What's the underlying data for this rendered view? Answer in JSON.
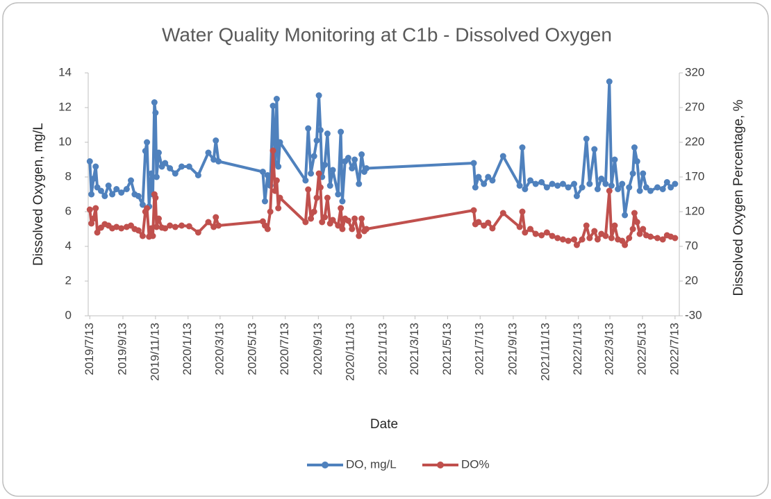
{
  "chart_data": {
    "type": "line",
    "title": "Water Quality Monitoring at C1b - Dissolved Oxygen",
    "x_label": "Date",
    "y_label": "Dissolved Oxygen, mg/L",
    "y2_label": "Dissolved Oxygen Percentage, %",
    "x": [
      "2019/7/13",
      "2019/7/16",
      "2019/7/20",
      "2019/7/24",
      "2019/7/27",
      "2019/8/3",
      "2019/8/10",
      "2019/8/17",
      "2019/8/24",
      "2019/9/1",
      "2019/9/10",
      "2019/9/20",
      "2019/9/28",
      "2019/10/5",
      "2019/10/12",
      "2019/10/20",
      "2019/10/25",
      "2019/10/28",
      "2019/11/1",
      "2019/11/5",
      "2019/11/8",
      "2019/11/11",
      "2019/11/13",
      "2019/11/15",
      "2019/11/19",
      "2019/11/25",
      "2019/12/1",
      "2019/12/10",
      "2019/12/20",
      "2020/1/1",
      "2020/1/15",
      "2020/2/1",
      "2020/2/20",
      "2020/3/1",
      "2020/3/5",
      "2020/3/10",
      "2020/6/1",
      "2020/6/5",
      "2020/6/10",
      "2020/6/15",
      "2020/6/20",
      "2020/6/24",
      "2020/6/27",
      "2020/6/30",
      "2020/7/3",
      "2020/8/20",
      "2020/8/25",
      "2020/8/30",
      "2020/9/5",
      "2020/9/10",
      "2020/9/14",
      "2020/9/17",
      "2020/9/20",
      "2020/9/25",
      "2020/9/30",
      "2020/10/5",
      "2020/10/10",
      "2020/10/20",
      "2020/10/25",
      "2020/10/28",
      "2020/11/2",
      "2020/11/8",
      "2020/11/15",
      "2020/11/20",
      "2020/11/28",
      "2020/12/3",
      "2020/12/8",
      "2020/12/12",
      "2021/7/1",
      "2021/7/4",
      "2021/7/10",
      "2021/7/20",
      "2021/7/28",
      "2021/8/5",
      "2021/8/25",
      "2021/9/25",
      "2021/9/30",
      "2021/10/5",
      "2021/10/15",
      "2021/10/25",
      "2021/11/5",
      "2021/11/15",
      "2021/11/25",
      "2021/12/5",
      "2021/12/15",
      "2021/12/25",
      "2022/1/5",
      "2022/1/10",
      "2022/1/20",
      "2022/1/28",
      "2022/2/3",
      "2022/2/12",
      "2022/2/18",
      "2022/2/25",
      "2022/3/5",
      "2022/3/12",
      "2022/3/16",
      "2022/3/22",
      "2022/3/28",
      "2022/4/5",
      "2022/4/10",
      "2022/4/18",
      "2022/4/25",
      "2022/4/28",
      "2022/5/3",
      "2022/5/8",
      "2022/5/14",
      "2022/5/20",
      "2022/5/28",
      "2022/6/10",
      "2022/6/20",
      "2022/6/28",
      "2022/7/5",
      "2022/7/13"
    ],
    "series": [
      {
        "name": "DO, mg/L",
        "color": "#4f81bd",
        "values": [
          8.9,
          7.0,
          7.9,
          8.6,
          7.4,
          7.2,
          6.9,
          7.5,
          7.0,
          7.3,
          7.1,
          7.3,
          7.8,
          7.0,
          6.9,
          6.4,
          9.5,
          10.0,
          6.3,
          8.2,
          7.0,
          12.3,
          11.7,
          8.0,
          9.4,
          8.6,
          8.8,
          8.5,
          8.2,
          8.6,
          8.6,
          8.1,
          9.4,
          9.0,
          10.1,
          8.9,
          8.3,
          6.6,
          8.1,
          7.5,
          12.1,
          8.8,
          12.5,
          8.6,
          10.0,
          7.8,
          10.8,
          8.2,
          9.2,
          10.1,
          12.7,
          10.7,
          8.0,
          8.7,
          10.5,
          7.5,
          8.4,
          7.0,
          10.6,
          6.6,
          8.9,
          9.1,
          8.5,
          9.0,
          7.6,
          9.3,
          8.3,
          8.5,
          8.8,
          7.4,
          8.0,
          7.6,
          8.0,
          7.8,
          9.2,
          7.5,
          9.7,
          7.3,
          7.8,
          7.6,
          7.7,
          7.4,
          7.6,
          7.5,
          7.6,
          7.4,
          7.6,
          6.9,
          7.4,
          10.2,
          7.6,
          9.6,
          7.3,
          7.9,
          7.6,
          13.5,
          7.5,
          9.0,
          7.3,
          7.6,
          5.8,
          7.4,
          8.2,
          9.7,
          8.9,
          7.2,
          8.2,
          7.4,
          7.2,
          7.4,
          7.3,
          7.7,
          7.4,
          7.6
        ]
      },
      {
        "name": "DO%",
        "color": "#c0504d",
        "axis": "y2",
        "values": [
          123,
          103,
          110,
          125,
          90,
          97,
          102,
          100,
          96,
          98,
          96,
          98,
          100,
          95,
          93,
          85,
          120,
          125,
          84,
          96,
          85,
          145,
          140,
          98,
          110,
          97,
          96,
          100,
          98,
          100,
          99,
          90,
          105,
          98,
          112,
          100,
          106,
          100,
          95,
          120,
          208,
          150,
          165,
          125,
          140,
          105,
          152,
          110,
          120,
          140,
          175,
          155,
          105,
          112,
          140,
          103,
          108,
          100,
          125,
          95,
          110,
          107,
          95,
          110,
          85,
          110,
          92,
          95,
          122,
          102,
          105,
          100,
          104,
          96,
          118,
          98,
          120,
          90,
          95,
          88,
          86,
          90,
          85,
          82,
          80,
          78,
          80,
          72,
          80,
          100,
          82,
          92,
          80,
          88,
          85,
          150,
          82,
          100,
          80,
          78,
          72,
          82,
          95,
          118,
          105,
          88,
          95,
          86,
          84,
          82,
          80,
          86,
          84,
          82
        ]
      }
    ],
    "xlim": [
      "2019/7/10",
      "2022/7/21"
    ],
    "xticks": [
      "2019/7/13",
      "2019/9/13",
      "2019/11/13",
      "2020/1/13",
      "2020/3/13",
      "2020/5/13",
      "2020/7/13",
      "2020/9/13",
      "2020/11/13",
      "2021/1/13",
      "2021/3/13",
      "2021/5/13",
      "2021/7/13",
      "2021/9/13",
      "2021/11/13",
      "2022/1/13",
      "2022/3/13",
      "2022/5/13",
      "2022/7/13"
    ],
    "ylim": [
      0,
      14
    ],
    "yticks": [
      0,
      2,
      4,
      6,
      8,
      10,
      12,
      14
    ],
    "y2lim": [
      -30,
      320
    ],
    "y2ticks": [
      -30,
      20,
      70,
      120,
      170,
      220,
      270,
      320
    ],
    "grid": false,
    "legend": "bottom"
  }
}
